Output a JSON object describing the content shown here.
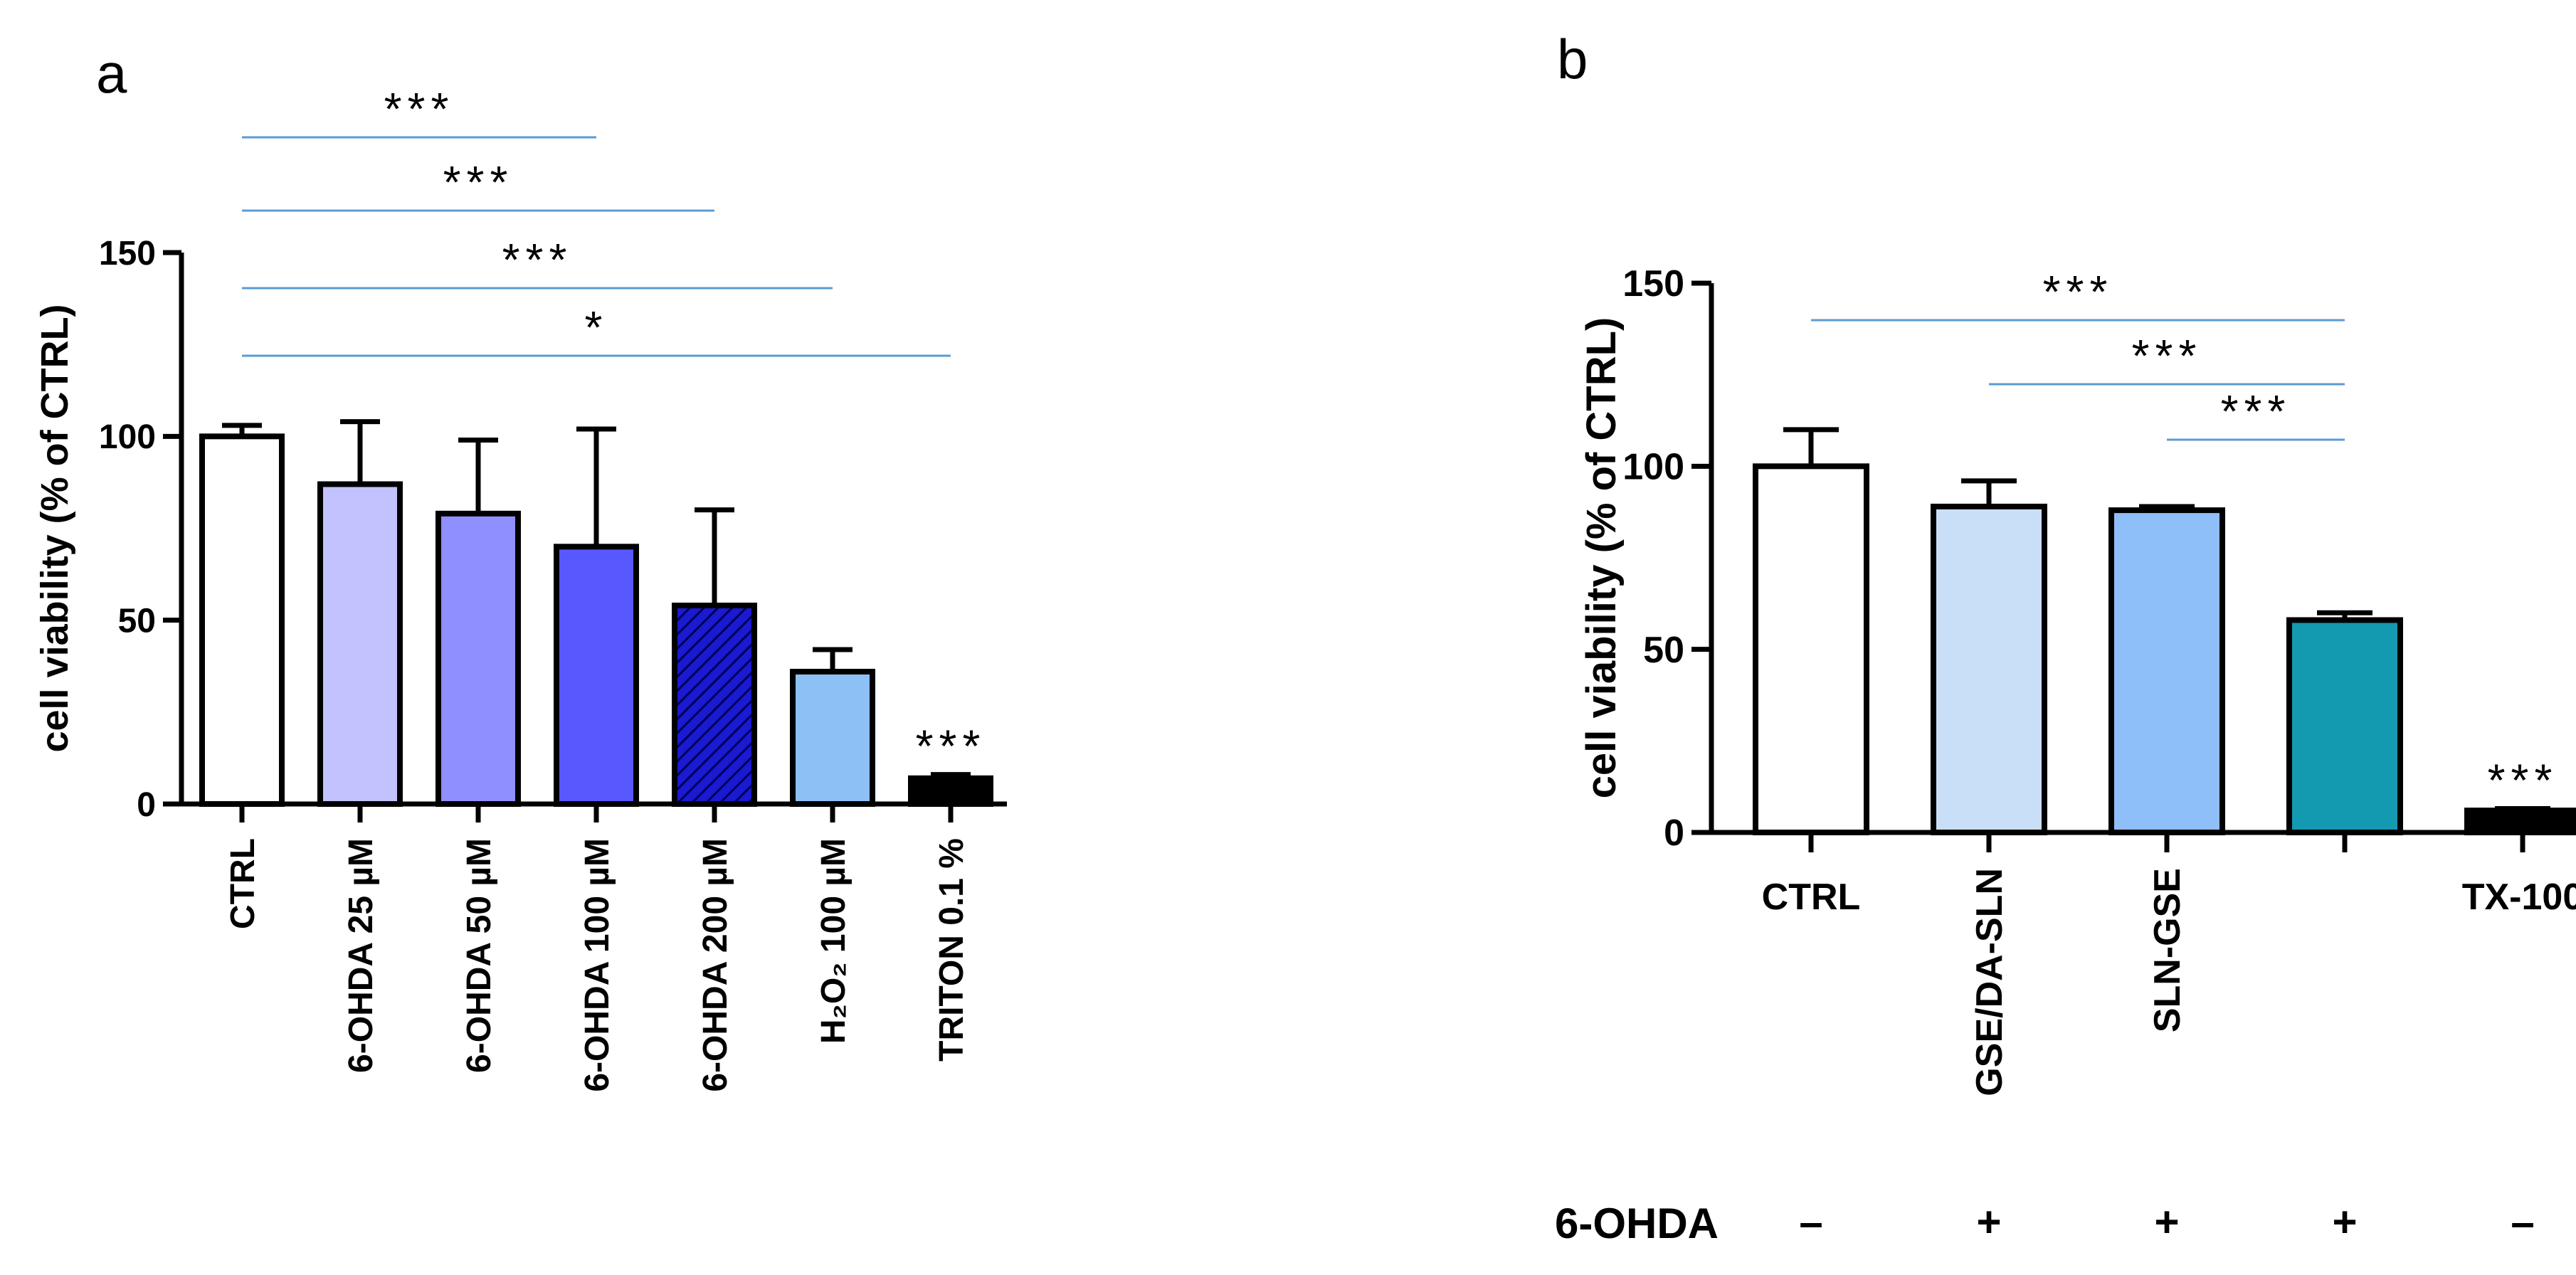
{
  "figure": {
    "panel_labels": [
      "a",
      "b"
    ],
    "treatment_row_label": "6-OHDA",
    "treatment_signs": [
      "–",
      "+",
      "+",
      "+",
      "–"
    ]
  },
  "colors": {
    "axis": "#000000",
    "sig_line": "#5b9bd5"
  },
  "chart_data": [
    {
      "panel": "a",
      "type": "bar",
      "title": "",
      "xlabel": "",
      "ylabel": "cell viability (% of CTRL)",
      "ylim": [
        0,
        150
      ],
      "yticks": [
        0,
        50,
        100,
        150
      ],
      "categories": [
        "CTRL",
        "6-OHDA 25 µM",
        "6-OHDA 50 µM",
        "6-OHDA 100 µM",
        "6-OHDA 200 µM",
        "H₂O₂ 100 µM",
        "TRITON 0.1 %"
      ],
      "values": [
        100,
        87,
        79,
        70,
        54,
        36,
        7
      ],
      "errors": [
        3,
        17,
        20,
        32,
        26,
        6,
        1
      ],
      "colors": [
        "#ffffff",
        "#c2c2ff",
        "#8f8fff",
        "#5858ff",
        "#1a1ad0",
        "#8dc0f5",
        "#000000"
      ],
      "hatched": [
        false,
        false,
        false,
        false,
        true,
        false,
        false
      ],
      "significance": [
        {
          "from": 0,
          "to": 6,
          "label": "*"
        },
        {
          "from": 0,
          "to": 5,
          "label": "***"
        },
        {
          "from": 0,
          "to": 4,
          "label": "***"
        },
        {
          "from": 0,
          "to": 3,
          "label": "***"
        }
      ],
      "bar_marks": [
        {
          "index": 6,
          "label": "***"
        }
      ]
    },
    {
      "panel": "b",
      "type": "bar",
      "title": "",
      "xlabel": "",
      "ylabel": "cell viability (% of CTRL)",
      "ylim": [
        0,
        150
      ],
      "yticks": [
        0,
        50,
        100,
        150
      ],
      "categories": [
        "CTRL",
        "GSE/DA-SLN",
        "SLN-GSE",
        "",
        "TX-100"
      ],
      "values": [
        100,
        89,
        88,
        58,
        6
      ],
      "errors": [
        10,
        7,
        1,
        2,
        0.5
      ],
      "colors": [
        "#ffffff",
        "#c9dff7",
        "#8fbff8",
        "#1399b0",
        "#000000"
      ],
      "hatched": [
        false,
        false,
        false,
        false,
        false
      ],
      "significance": [
        {
          "from": 0,
          "to": 3,
          "label": "***"
        },
        {
          "from": 1,
          "to": 3,
          "label": "***"
        },
        {
          "from": 2,
          "to": 3,
          "label": "***"
        }
      ],
      "bar_marks": [
        {
          "index": 4,
          "label": "***"
        }
      ]
    }
  ]
}
